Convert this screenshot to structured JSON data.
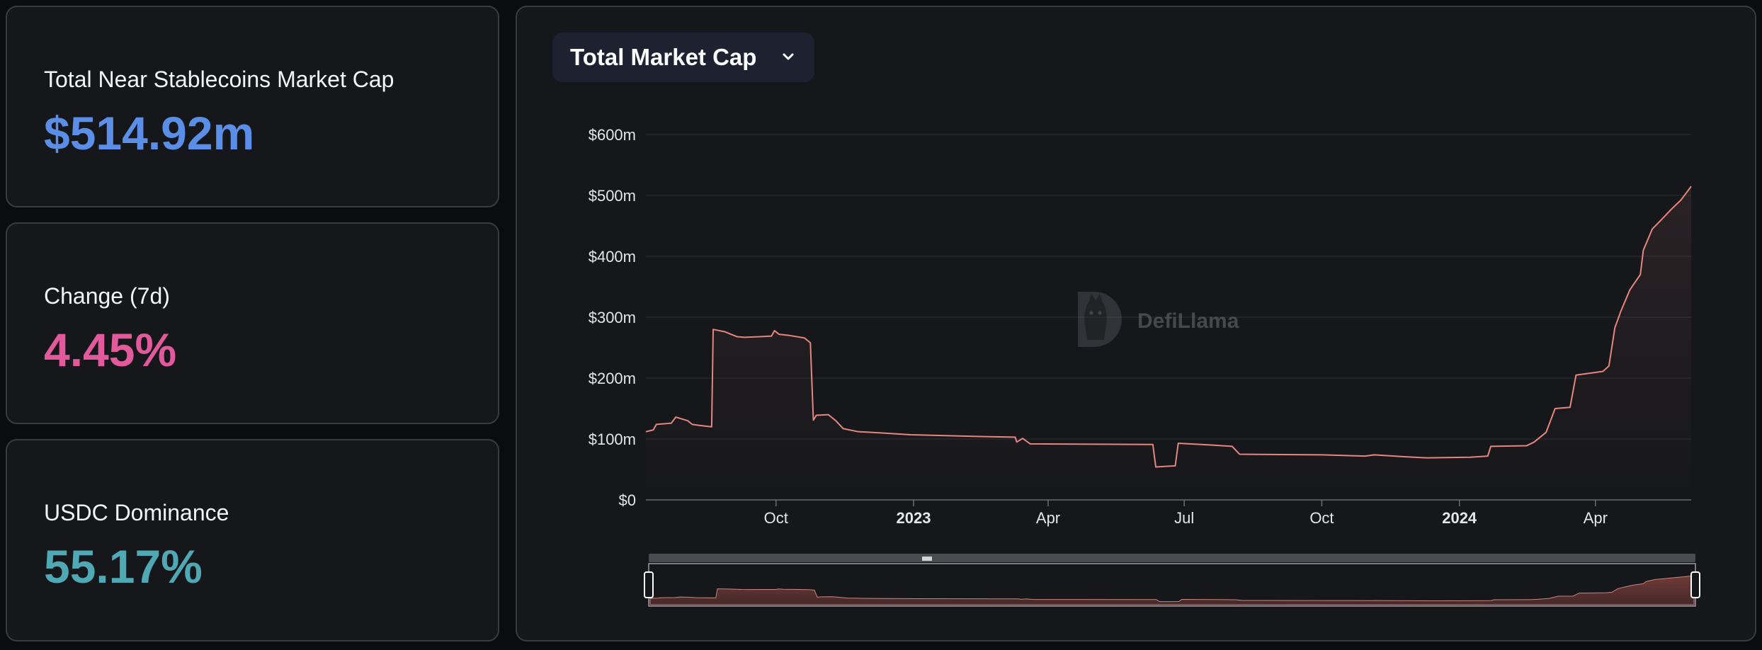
{
  "stats": [
    {
      "label": "Total Near Stablecoins Market Cap",
      "value": "$514.92m",
      "color": "#5b8ee6"
    },
    {
      "label": "Change (7d)",
      "value": "4.45%",
      "color": "#e35a9c"
    },
    {
      "label": "USDC Dominance",
      "value": "55.17%",
      "color": "#4fa9b4"
    }
  ],
  "selector": {
    "label": "Total Market Cap",
    "icon": "chevron-down-icon"
  },
  "watermark": {
    "text": "DefiLlama",
    "icon": "llama-logo-icon"
  },
  "chart_data": {
    "type": "area",
    "title": "",
    "xlabel": "",
    "ylabel": "",
    "ylim": [
      0,
      600
    ],
    "y_unit": "$m",
    "y_ticks": [
      0,
      100,
      200,
      300,
      400,
      500,
      600
    ],
    "y_tick_labels": [
      "$0",
      "$100m",
      "$200m",
      "$300m",
      "$400m",
      "$500m",
      "$600m"
    ],
    "x_ticks": [
      {
        "date": "2022-10-01",
        "label": "Oct",
        "bold": false
      },
      {
        "date": "2023-01-01",
        "label": "2023",
        "bold": true
      },
      {
        "date": "2023-04-01",
        "label": "Apr",
        "bold": false
      },
      {
        "date": "2023-07-01",
        "label": "Jul",
        "bold": false
      },
      {
        "date": "2023-10-01",
        "label": "Oct",
        "bold": false
      },
      {
        "date": "2024-01-01",
        "label": "2024",
        "bold": true
      },
      {
        "date": "2024-04-01",
        "label": "Apr",
        "bold": false
      }
    ],
    "x_range": [
      "2022-07-06",
      "2024-06-04"
    ],
    "line_color": "#e5877f",
    "grid": true,
    "series": [
      {
        "values": [
          [
            "2022-07-06",
            112
          ],
          [
            "2022-07-11",
            115
          ],
          [
            "2022-07-13",
            124
          ],
          [
            "2022-07-23",
            126
          ],
          [
            "2022-07-26",
            136
          ],
          [
            "2022-08-03",
            130
          ],
          [
            "2022-08-06",
            124
          ],
          [
            "2022-08-12",
            122
          ],
          [
            "2022-08-19",
            120
          ],
          [
            "2022-08-20",
            280
          ],
          [
            "2022-08-28",
            276
          ],
          [
            "2022-09-05",
            268
          ],
          [
            "2022-09-10",
            267
          ],
          [
            "2022-09-20",
            268
          ],
          [
            "2022-09-28",
            269
          ],
          [
            "2022-09-30",
            278
          ],
          [
            "2022-10-03",
            272
          ],
          [
            "2022-10-10",
            270
          ],
          [
            "2022-10-20",
            266
          ],
          [
            "2022-10-24",
            258
          ],
          [
            "2022-10-26",
            131
          ],
          [
            "2022-10-28",
            139
          ],
          [
            "2022-11-05",
            140
          ],
          [
            "2022-11-10",
            130
          ],
          [
            "2022-11-15",
            117
          ],
          [
            "2022-11-25",
            112
          ],
          [
            "2022-12-10",
            110
          ],
          [
            "2022-12-30",
            107
          ],
          [
            "2023-02-15",
            104
          ],
          [
            "2023-03-10",
            103
          ],
          [
            "2023-03-11",
            95
          ],
          [
            "2023-03-15",
            101
          ],
          [
            "2023-03-20",
            92
          ],
          [
            "2023-06-10",
            91
          ],
          [
            "2023-06-12",
            54
          ],
          [
            "2023-06-25",
            56
          ],
          [
            "2023-06-27",
            93
          ],
          [
            "2023-07-20",
            90
          ],
          [
            "2023-08-02",
            88
          ],
          [
            "2023-08-07",
            75
          ],
          [
            "2023-10-01",
            74
          ],
          [
            "2023-10-30",
            72
          ],
          [
            "2023-11-05",
            74
          ],
          [
            "2023-11-25",
            71
          ],
          [
            "2023-12-10",
            69
          ],
          [
            "2024-01-08",
            70
          ],
          [
            "2024-01-20",
            72
          ],
          [
            "2024-01-22",
            88
          ],
          [
            "2024-02-15",
            89
          ],
          [
            "2024-02-20",
            95
          ],
          [
            "2024-02-28",
            111
          ],
          [
            "2024-03-05",
            150
          ],
          [
            "2024-03-15",
            152
          ],
          [
            "2024-03-19",
            205
          ],
          [
            "2024-03-25",
            207
          ],
          [
            "2024-04-06",
            211
          ],
          [
            "2024-04-10",
            220
          ],
          [
            "2024-04-14",
            283
          ],
          [
            "2024-04-18",
            310
          ],
          [
            "2024-04-24",
            345
          ],
          [
            "2024-05-01",
            370
          ],
          [
            "2024-05-03",
            410
          ],
          [
            "2024-05-09",
            445
          ],
          [
            "2024-05-15",
            460
          ],
          [
            "2024-05-22",
            478
          ],
          [
            "2024-05-28",
            492
          ],
          [
            "2024-06-01",
            505
          ],
          [
            "2024-06-04",
            515
          ]
        ]
      }
    ]
  }
}
